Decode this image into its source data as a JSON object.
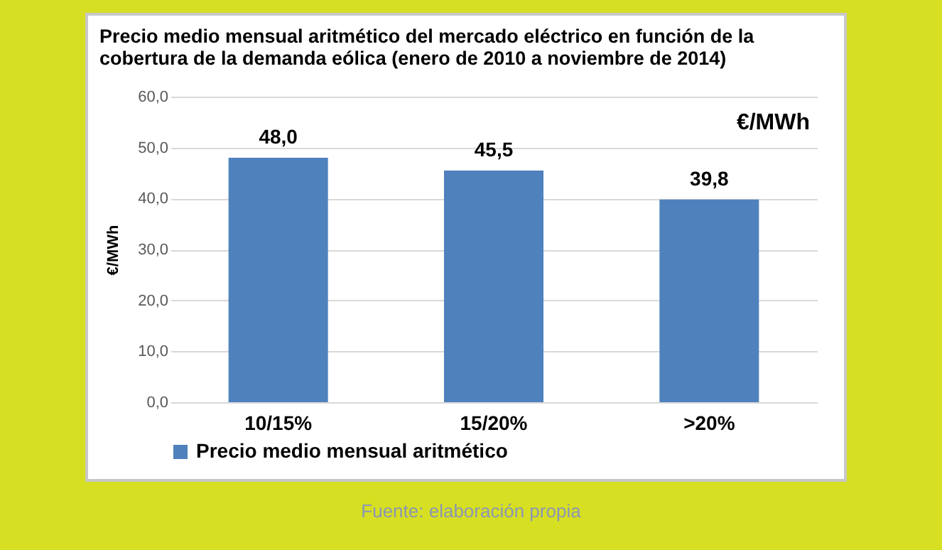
{
  "chart_data": {
    "type": "bar",
    "title": [
      "Precio medio mensual aritmético del mercado eléctrico en función de la",
      "cobertura de la demanda eólica (enero de 2010 a noviembre de 2014)"
    ],
    "ylabel": "€/MWh",
    "categories": [
      "10/15%",
      "15/20%",
      ">20%"
    ],
    "series": [
      {
        "name": "Precio medio mensual aritmético",
        "color": "#4f81bd",
        "values": [
          48.0,
          45.5,
          39.8
        ],
        "value_labels": [
          "48,0",
          "45,5",
          "39,8"
        ]
      }
    ],
    "ylim": [
      0,
      60
    ],
    "yticks": [
      {
        "value": 0,
        "label": "0,0"
      },
      {
        "value": 10,
        "label": "10,0"
      },
      {
        "value": 20,
        "label": "20,0"
      },
      {
        "value": 30,
        "label": "30,0"
      },
      {
        "value": 40,
        "label": "40,0"
      },
      {
        "value": 50,
        "label": "50,0"
      },
      {
        "value": 60,
        "label": "60,0"
      }
    ],
    "grid": "y",
    "legend": "bottom",
    "annotations": [
      "€/MWh",
      "Fuente: elaboración propia"
    ]
  }
}
